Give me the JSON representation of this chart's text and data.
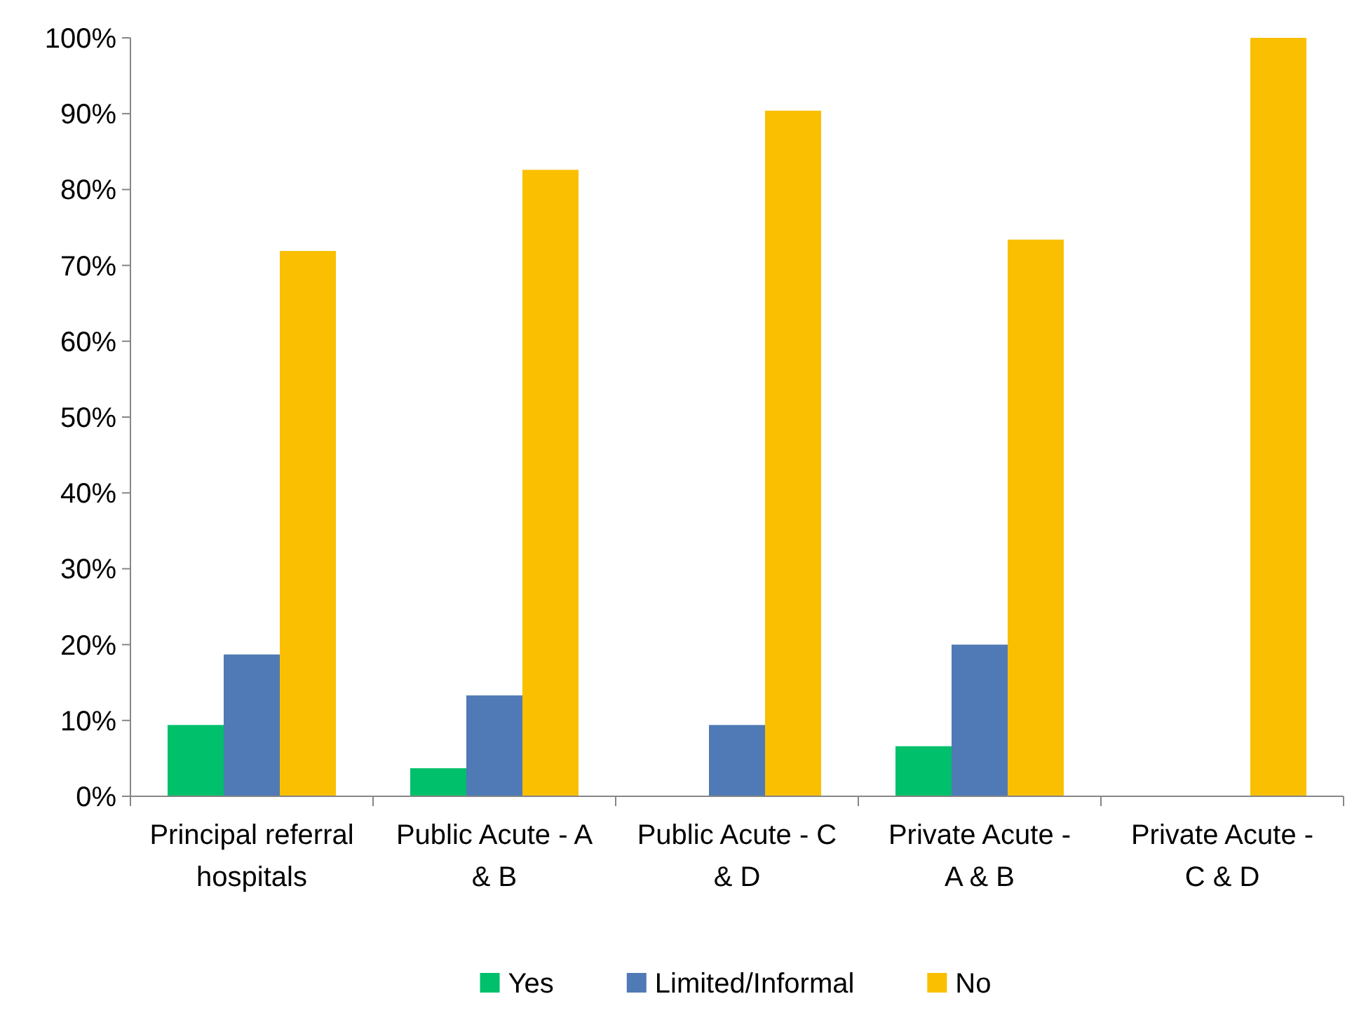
{
  "chart_data": {
    "type": "bar",
    "categories": [
      "Principal referral hospitals",
      "Public Acute - A & B",
      "Public Acute - C & D",
      "Private Acute - A & B",
      "Private Acute - C & D"
    ],
    "series": [
      {
        "name": "Yes",
        "color": "#00c06b",
        "values": [
          9.4,
          3.7,
          0,
          6.6,
          0
        ]
      },
      {
        "name": "Limited/Informal",
        "color": "#4f7ab5",
        "values": [
          18.7,
          13.3,
          9.4,
          20,
          0
        ]
      },
      {
        "name": "No",
        "color": "#f9bf00",
        "values": [
          71.9,
          82.6,
          90.4,
          73.4,
          100
        ]
      }
    ],
    "ylim": [
      0,
      100
    ],
    "yticks": [
      {
        "value": 0,
        "label": "0%"
      },
      {
        "value": 10,
        "label": "10%"
      },
      {
        "value": 20,
        "label": "20%"
      },
      {
        "value": 30,
        "label": "30%"
      },
      {
        "value": 40,
        "label": "40%"
      },
      {
        "value": 50,
        "label": "50%"
      },
      {
        "value": 60,
        "label": "60%"
      },
      {
        "value": 70,
        "label": "70%"
      },
      {
        "value": 80,
        "label": "80%"
      },
      {
        "value": 90,
        "label": "90%"
      },
      {
        "value": 100,
        "label": "100%"
      }
    ],
    "grid": false,
    "legend": "bottom"
  }
}
